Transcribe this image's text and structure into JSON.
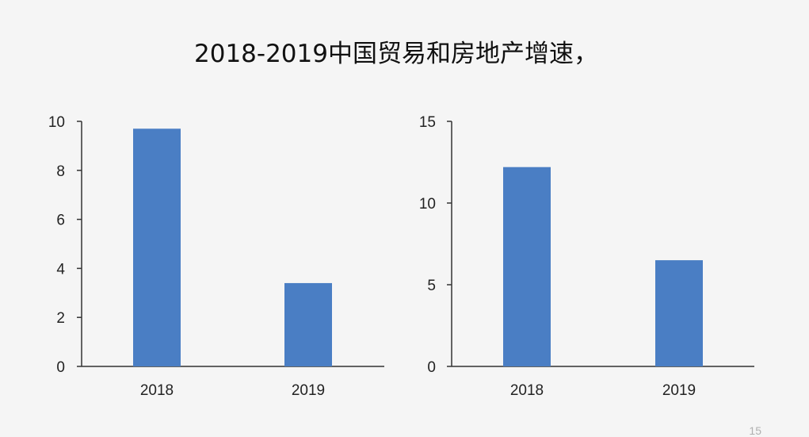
{
  "slide": {
    "title": "2018-2019中国贸易和房地产增速，",
    "page_number": "15"
  },
  "colors": {
    "bar": "#4a7ec4",
    "axis": "#333333",
    "background": "#f5f5f5"
  },
  "chart_data": [
    {
      "type": "bar",
      "title": "",
      "xlabel": "",
      "ylabel": "",
      "categories": [
        "2018",
        "2019"
      ],
      "values": [
        9.7,
        3.4
      ],
      "ylim": [
        0,
        10
      ],
      "yticks": [
        "0",
        "2",
        "4",
        "6",
        "8",
        "10"
      ],
      "grid": false,
      "legend": "none"
    },
    {
      "type": "bar",
      "title": "",
      "xlabel": "",
      "ylabel": "",
      "categories": [
        "2018",
        "2019"
      ],
      "values": [
        12.2,
        6.5
      ],
      "ylim": [
        0,
        15
      ],
      "yticks": [
        "0",
        "5",
        "10",
        "15"
      ],
      "grid": false,
      "legend": "none"
    }
  ]
}
